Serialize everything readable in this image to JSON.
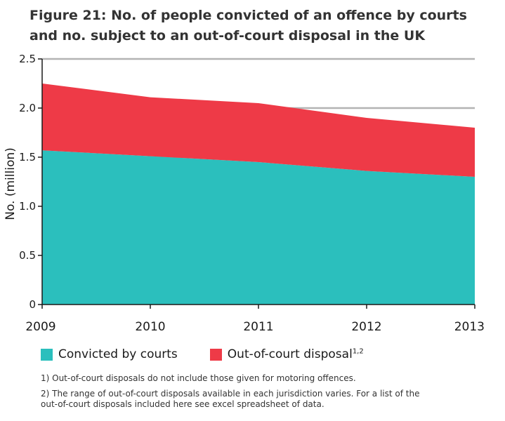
{
  "title": "Figure 21: No. of people convicted of an offence by courts\nand no. subject to an out-of-court disposal in the UK",
  "chart_data": {
    "type": "area",
    "stacked": true,
    "x": [
      "2009",
      "2010",
      "2011",
      "2012",
      "2013"
    ],
    "series": [
      {
        "name": "Convicted by courts",
        "values": [
          1.57,
          1.51,
          1.45,
          1.36,
          1.3
        ],
        "color": "#2bbfbd"
      },
      {
        "name": "Out-of-court disposal",
        "values": [
          0.68,
          0.6,
          0.6,
          0.54,
          0.5
        ],
        "color": "#ee3a47"
      }
    ],
    "ylabel": "No. (million)",
    "ylim": [
      0,
      2.5
    ],
    "yticks": [
      "0",
      "0.5",
      "1.0",
      "1.5",
      "2.0",
      "2.5"
    ],
    "grid": true,
    "legend_position": "bottom-left"
  },
  "legend": {
    "items": [
      {
        "label": "Convicted by courts",
        "superscript": ""
      },
      {
        "label": "Out-of-court disposal",
        "superscript": "1,2"
      }
    ]
  },
  "notes": [
    "1) Out-of-court disposals do not include those given for motoring offences.",
    "2) The range of out-of-court disposals available in each jurisdiction varies. For a list of the\nout-of-court disposals included here see excel spreadsheet of data."
  ]
}
